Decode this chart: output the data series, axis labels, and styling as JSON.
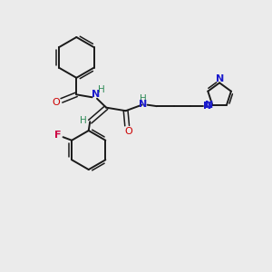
{
  "background_color": "#ebebeb",
  "bond_color": "#1a1a1a",
  "oxygen_color": "#cc0000",
  "nitrogen_color": "#1a1acc",
  "fluorine_color": "#cc0044",
  "hydrogen_color": "#2e8b57",
  "figsize": [
    3.0,
    3.0
  ],
  "dpi": 100,
  "xlim": [
    0,
    10
  ],
  "ylim": [
    0,
    10
  ]
}
